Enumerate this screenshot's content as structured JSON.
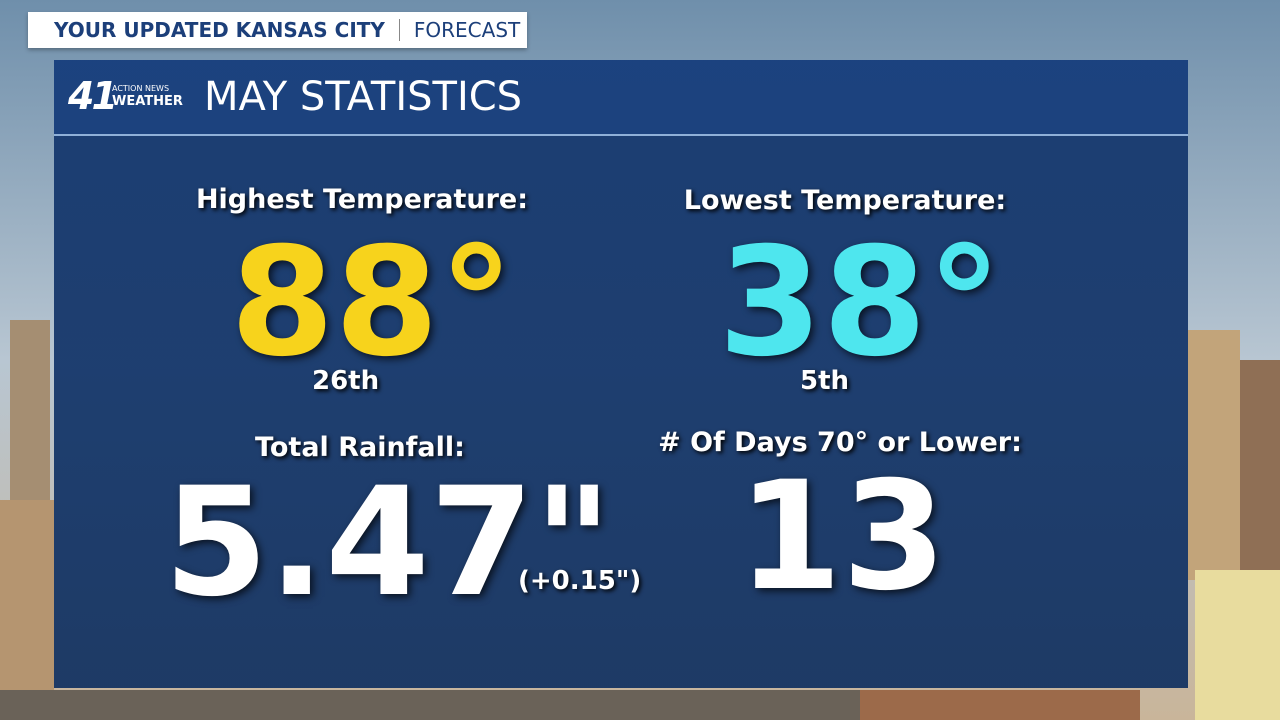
{
  "header": {
    "title": "YOUR UPDATED KANSAS CITY",
    "subtitle": "FORECAST"
  },
  "logo": {
    "number": "41",
    "line1": "ACTION NEWS",
    "line2": "WEATHER"
  },
  "panel": {
    "title": "MAY STATISTICS"
  },
  "stats": [
    {
      "label": "Highest Temperature:",
      "value": "88°",
      "note": "26th"
    },
    {
      "label": "Lowest Temperature:",
      "value": "38°",
      "note": "5th"
    },
    {
      "label": "Total Rainfall:",
      "value": "5.47\"",
      "note": "(+0.15\")"
    },
    {
      "label": "# Of Days 70° or Lower:",
      "value": "13"
    }
  ]
}
